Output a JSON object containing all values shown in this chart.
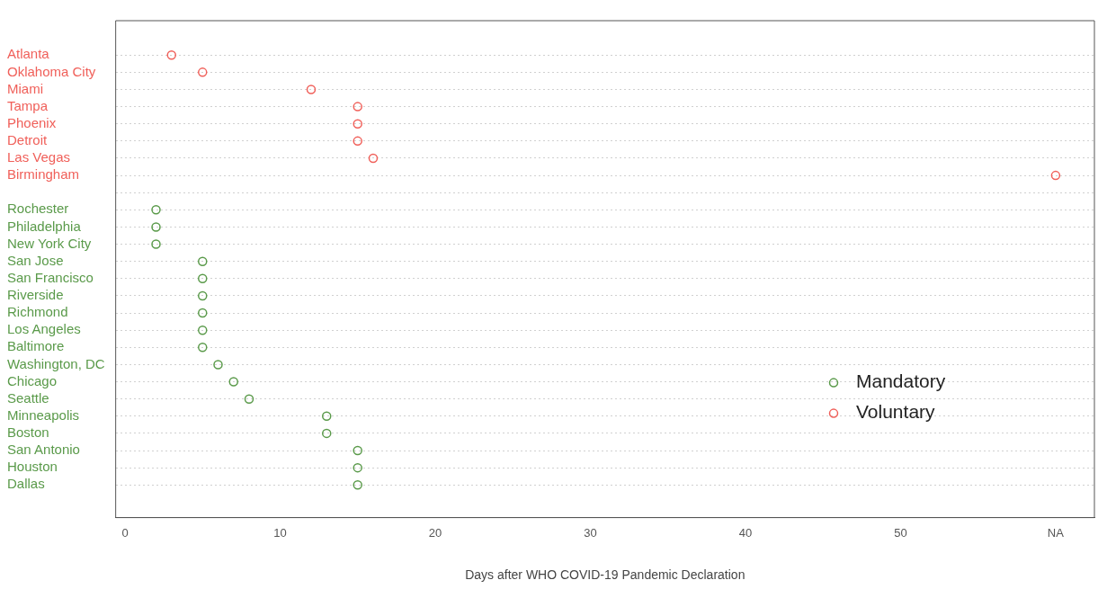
{
  "chart_data": {
    "type": "scatter",
    "orientation": "horizontal",
    "xlabel": "Days after WHO COVID-19 Pandemic Declaration",
    "categories": [
      "Atlanta",
      "Oklahoma City",
      "Miami",
      "Tampa",
      "Phoenix",
      "Detroit",
      "Las Vegas",
      "Birmingham",
      null,
      "Rochester",
      "Philadelphia",
      "New York City",
      "San Jose",
      "San Francisco",
      "Riverside",
      "Richmond",
      "Los Angeles",
      "Baltimore",
      "Washington, DC",
      "Chicago",
      "Seattle",
      "Minneapolis",
      "Boston",
      "San Antonio",
      "Houston",
      "Dallas"
    ],
    "series": [
      {
        "name": "Mandatory",
        "color": "#5a9a4a",
        "values": [
          null,
          null,
          null,
          null,
          null,
          null,
          null,
          null,
          null,
          2,
          2,
          2,
          5,
          5,
          5,
          5,
          5,
          5,
          6,
          7,
          8,
          13,
          13,
          15,
          15,
          15
        ]
      },
      {
        "name": "Voluntary",
        "color": "#f0605a",
        "values": [
          3,
          5,
          12,
          15,
          15,
          15,
          16,
          60,
          null,
          null,
          null,
          null,
          null,
          null,
          null,
          null,
          null,
          null,
          null,
          null,
          null,
          null,
          null,
          null,
          null,
          null
        ]
      }
    ],
    "xlim": [
      -0.6,
      62.5
    ],
    "xticks": [
      0,
      10,
      20,
      30,
      40,
      50,
      {
        "value": 60,
        "label": "NA"
      }
    ],
    "grid": "y",
    "legend": "bottom right",
    "marker": "circle"
  }
}
